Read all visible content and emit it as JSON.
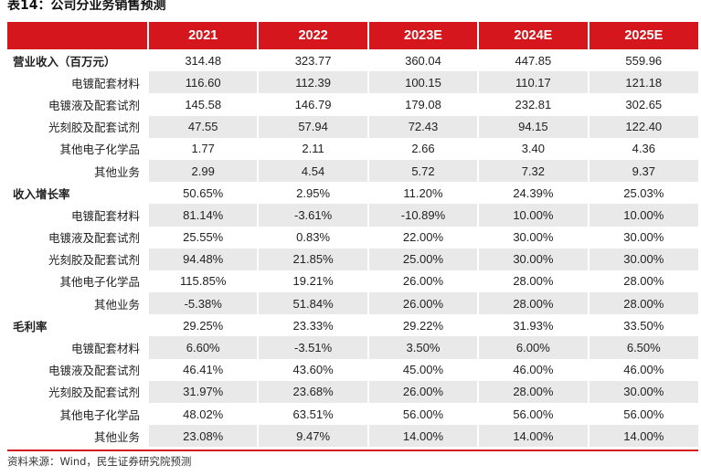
{
  "title": "表14：公司分业务销售预测",
  "source": "资料来源：Wind，民生证券研究院预测",
  "header": [
    "",
    "2021",
    "2022",
    "2023E",
    "2024E",
    "2025E"
  ],
  "rows": [
    {
      "label": "营业收入（百万元）",
      "type": "section",
      "values": [
        "314.48",
        "323.77",
        "360.04",
        "447.85",
        "559.96"
      ]
    },
    {
      "label": "电镀配套材料",
      "type": "item",
      "values": [
        "116.60",
        "112.39",
        "100.15",
        "110.17",
        "121.18"
      ]
    },
    {
      "label": "电镀液及配套试剂",
      "type": "item",
      "values": [
        "145.58",
        "146.79",
        "179.08",
        "232.81",
        "302.65"
      ]
    },
    {
      "label": "光刻胶及配套试剂",
      "type": "item",
      "values": [
        "47.55",
        "57.94",
        "72.43",
        "94.15",
        "122.40"
      ]
    },
    {
      "label": "其他电子化学品",
      "type": "item",
      "values": [
        "1.77",
        "2.11",
        "2.66",
        "3.40",
        "4.36"
      ]
    },
    {
      "label": "其他业务",
      "type": "item",
      "values": [
        "2.99",
        "4.54",
        "5.72",
        "7.32",
        "9.37"
      ]
    },
    {
      "label": "收入增长率",
      "type": "section",
      "values": [
        "50.65%",
        "2.95%",
        "11.20%",
        "24.39%",
        "25.03%"
      ]
    },
    {
      "label": "电镀配套材料",
      "type": "item",
      "values": [
        "81.14%",
        "-3.61%",
        "-10.89%",
        "10.00%",
        "10.00%"
      ]
    },
    {
      "label": "电镀液及配套试剂",
      "type": "item",
      "values": [
        "25.55%",
        "0.83%",
        "22.00%",
        "30.00%",
        "30.00%"
      ]
    },
    {
      "label": "光刻胶及配套试剂",
      "type": "item",
      "values": [
        "94.48%",
        "21.85%",
        "25.00%",
        "30.00%",
        "30.00%"
      ]
    },
    {
      "label": "其他电子化学品",
      "type": "item",
      "values": [
        "115.85%",
        "19.21%",
        "26.00%",
        "28.00%",
        "28.00%"
      ]
    },
    {
      "label": "其他业务",
      "type": "item",
      "values": [
        "-5.38%",
        "51.84%",
        "26.00%",
        "28.00%",
        "28.00%"
      ]
    },
    {
      "label": "毛利率",
      "type": "section",
      "values": [
        "29.25%",
        "23.33%",
        "29.22%",
        "31.93%",
        "33.50%"
      ]
    },
    {
      "label": "电镀配套材料",
      "type": "item",
      "values": [
        "6.60%",
        "-3.51%",
        "3.50%",
        "6.00%",
        "6.50%"
      ]
    },
    {
      "label": "电镀液及配套试剂",
      "type": "item",
      "values": [
        "46.41%",
        "43.60%",
        "45.00%",
        "46.00%",
        "46.00%"
      ]
    },
    {
      "label": "光刻胶及配套试剂",
      "type": "item",
      "values": [
        "31.97%",
        "23.68%",
        "26.00%",
        "28.00%",
        "30.00%"
      ]
    },
    {
      "label": "其他电子化学品",
      "type": "item",
      "values": [
        "48.02%",
        "63.51%",
        "56.00%",
        "56.00%",
        "56.00%"
      ]
    },
    {
      "label": "其他业务",
      "type": "item",
      "values": [
        "23.08%",
        "9.47%",
        "14.00%",
        "14.00%",
        "14.00%"
      ]
    }
  ]
}
